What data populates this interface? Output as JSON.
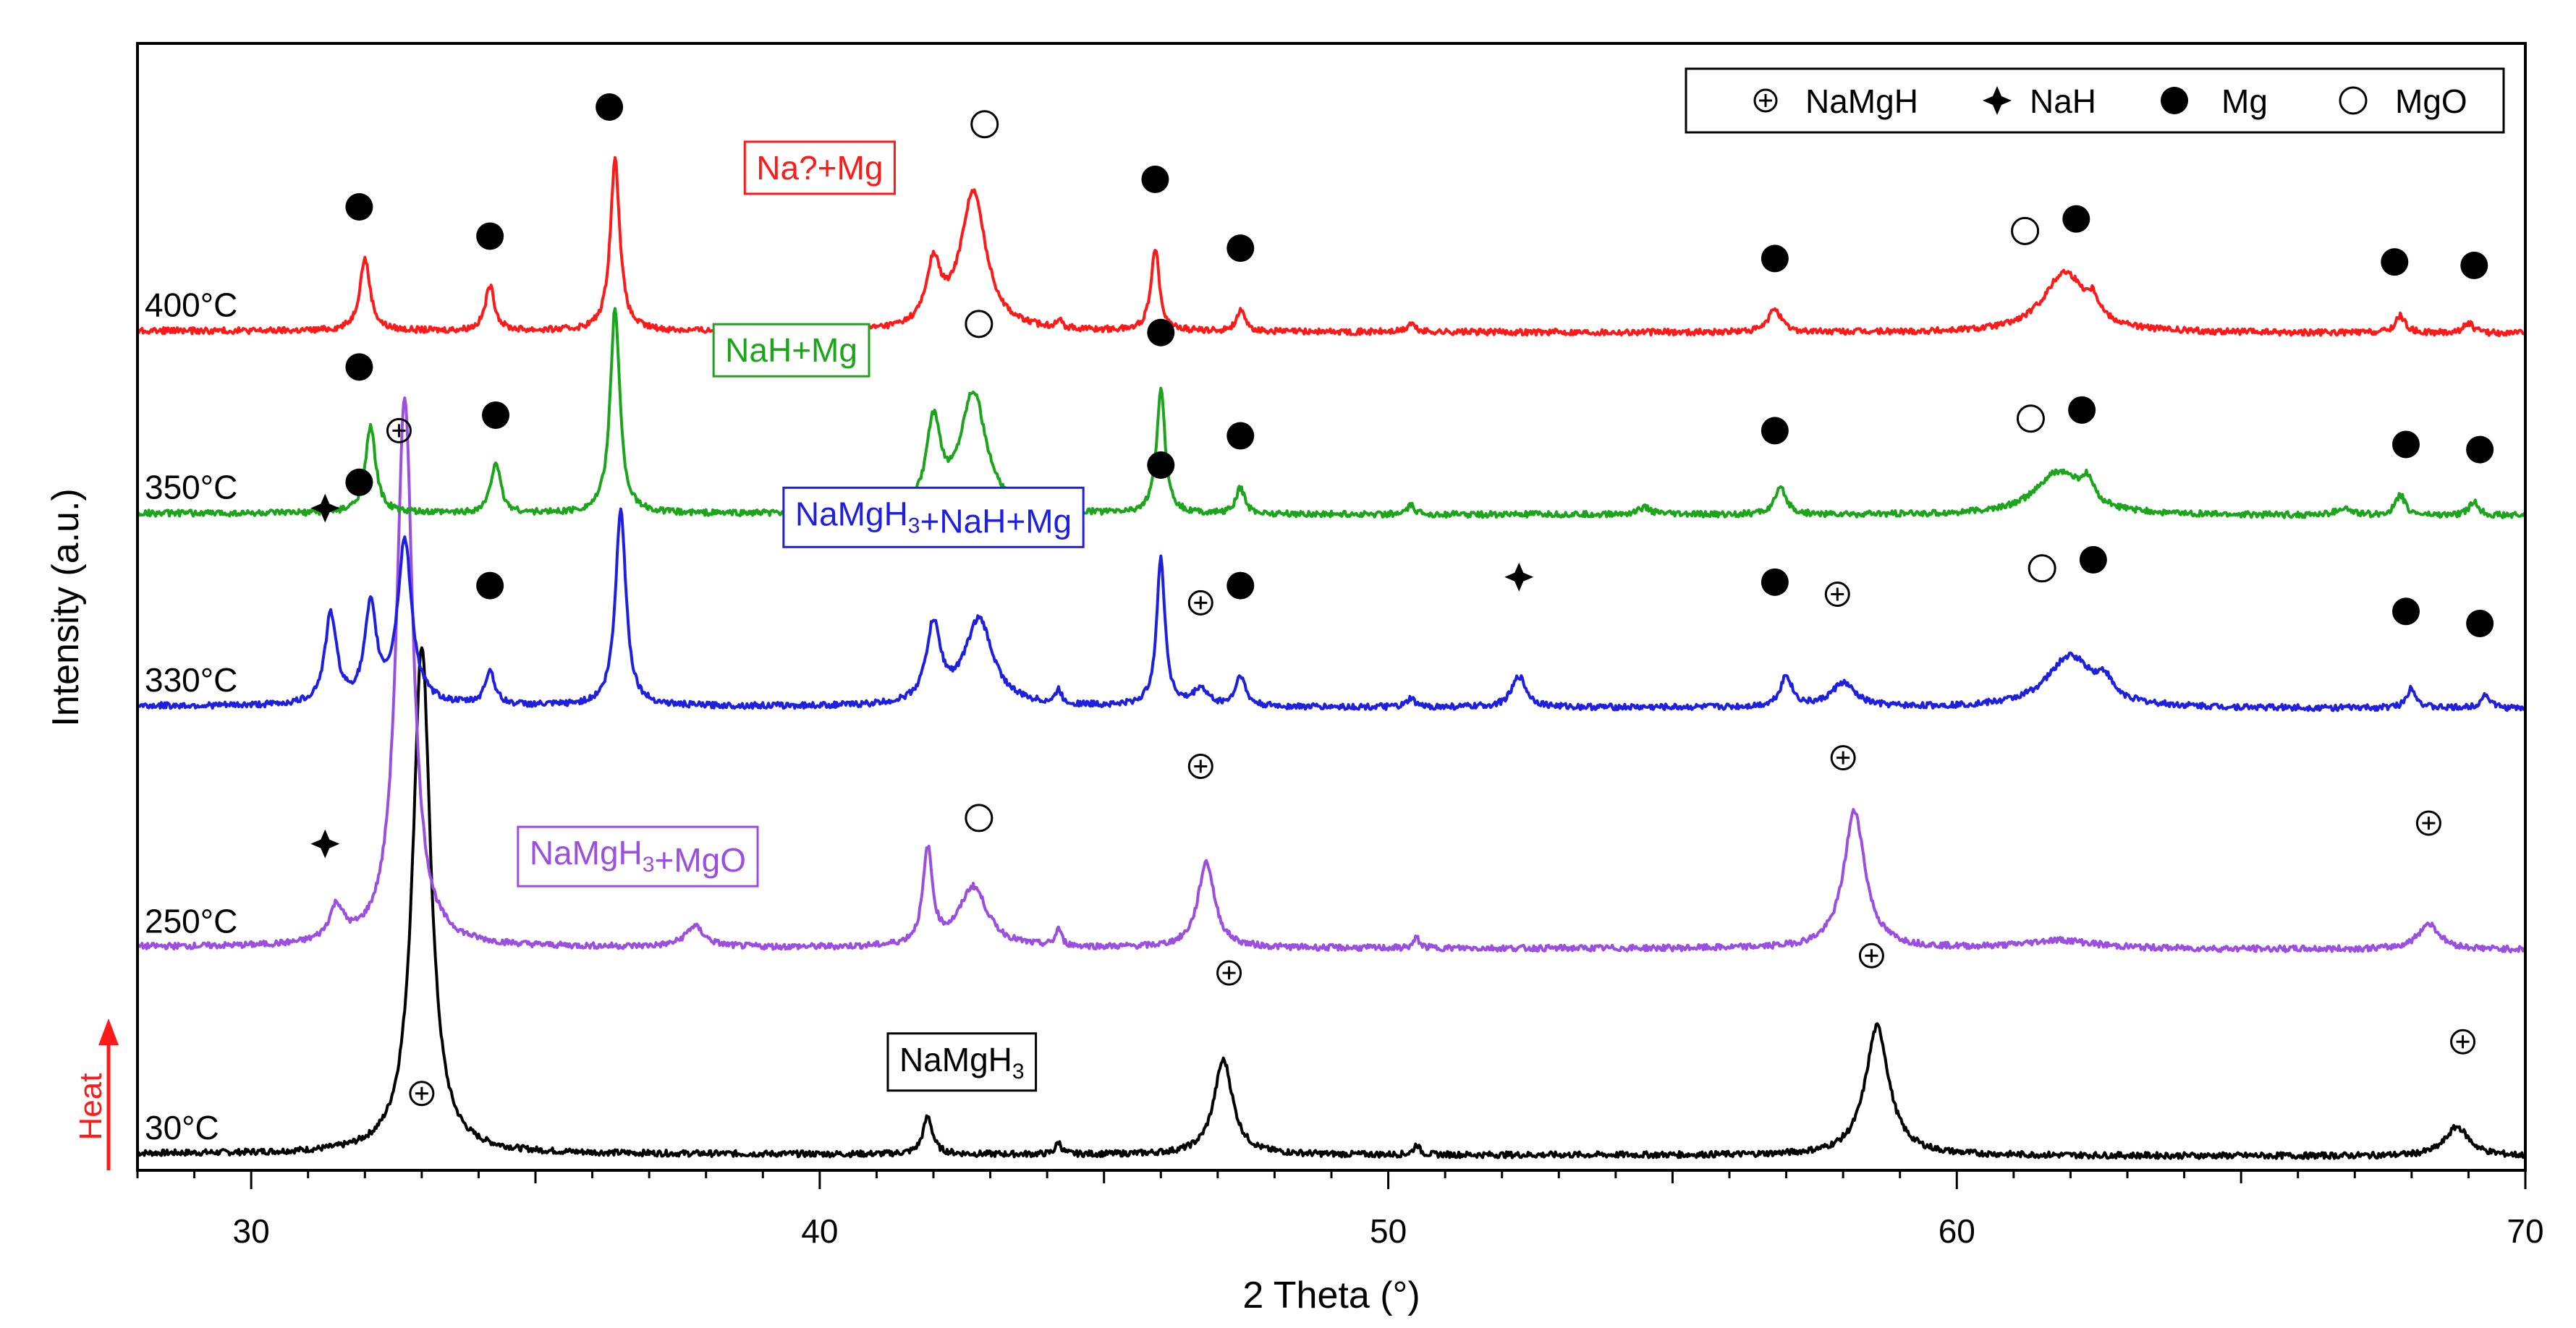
{
  "chart_data": {
    "type": "line",
    "title": "",
    "xlabel": "2 Theta (°)",
    "ylabel": "Intensity (a.u.)",
    "xlim": [
      28,
      70
    ],
    "x_ticks": [
      30,
      40,
      50,
      60,
      70
    ],
    "heat_label": "Heat",
    "legend": {
      "placement": "top-right",
      "entries": [
        {
          "marker": "oplus",
          "label": "NaMgH"
        },
        {
          "marker": "star",
          "label": "NaH"
        },
        {
          "marker": "filled",
          "label": "Mg"
        },
        {
          "marker": "open",
          "label": "MgO"
        }
      ]
    },
    "series": [
      {
        "name": "30°C",
        "color": "#000000",
        "baseline": 0,
        "phase_label": "NaMgH3",
        "phase_label_x": 42.5,
        "peaks": [
          [
            33.0,
            2.95,
            0.38
          ],
          [
            41.9,
            0.22,
            0.2
          ],
          [
            44.2,
            0.07,
            0.12
          ],
          [
            47.1,
            0.55,
            0.4
          ],
          [
            50.5,
            0.06,
            0.12
          ],
          [
            58.6,
            0.75,
            0.5
          ],
          [
            68.8,
            0.17,
            0.5
          ]
        ],
        "markers": [
          {
            "type": "oplus",
            "x": 33.0,
            "y": 0.35
          },
          {
            "type": "oplus",
            "x": 47.2,
            "y": 1.05
          },
          {
            "type": "oplus",
            "x": 58.5,
            "y": 1.15
          },
          {
            "type": "oplus",
            "x": 68.9,
            "y": 0.65
          }
        ]
      },
      {
        "name": "250°C",
        "color": "#9b4fe0",
        "baseline": 1.2,
        "phase_label": "NaMgH3+MgO",
        "phase_label_x": 36.8,
        "peaks": [
          [
            31.5,
            0.2,
            0.3
          ],
          [
            32.7,
            3.2,
            0.35
          ],
          [
            37.8,
            0.12,
            0.4
          ],
          [
            41.9,
            0.55,
            0.2
          ],
          [
            42.7,
            0.35,
            0.6
          ],
          [
            44.2,
            0.1,
            0.12
          ],
          [
            46.8,
            0.5,
            0.35
          ],
          [
            50.5,
            0.06,
            0.12
          ],
          [
            58.2,
            0.8,
            0.45
          ],
          [
            61.8,
            0.05,
            1.5
          ],
          [
            68.3,
            0.15,
            0.45
          ]
        ],
        "markers": [
          {
            "type": "star",
            "x": 31.3,
            "y": 0.6
          },
          {
            "type": "open",
            "x": 42.8,
            "y": 0.75
          },
          {
            "type": "oplus",
            "x": 46.7,
            "y": 1.05
          },
          {
            "type": "oplus",
            "x": 58.0,
            "y": 1.1
          },
          {
            "type": "oplus",
            "x": 68.3,
            "y": 0.72
          }
        ]
      },
      {
        "name": "330°C",
        "color": "#1f1fe0",
        "baseline": 2.6,
        "phase_label": "NaMgH3+NaH+Mg",
        "phase_label_x": 42.0,
        "peaks": [
          [
            31.4,
            0.52,
            0.25
          ],
          [
            32.1,
            0.55,
            0.25
          ],
          [
            32.7,
            0.95,
            0.3
          ],
          [
            34.2,
            0.2,
            0.2
          ],
          [
            36.5,
            1.15,
            0.22
          ],
          [
            42.0,
            0.45,
            0.3
          ],
          [
            42.8,
            0.5,
            0.6
          ],
          [
            44.2,
            0.08,
            0.12
          ],
          [
            46.0,
            0.85,
            0.18
          ],
          [
            46.7,
            0.1,
            0.3
          ],
          [
            47.4,
            0.18,
            0.2
          ],
          [
            50.4,
            0.05,
            0.15
          ],
          [
            52.3,
            0.18,
            0.3
          ],
          [
            57.0,
            0.18,
            0.25
          ],
          [
            58.0,
            0.14,
            0.5
          ],
          [
            62.0,
            0.3,
            1.0
          ],
          [
            62.6,
            0.1,
            0.3
          ],
          [
            68.0,
            0.12,
            0.2
          ],
          [
            69.3,
            0.08,
            0.2
          ]
        ],
        "markers": [
          {
            "type": "star",
            "x": 31.3,
            "y": 1.15
          },
          {
            "type": "filled",
            "x": 31.9,
            "y": 1.3
          },
          {
            "type": "oplus",
            "x": 32.6,
            "y": 1.6
          },
          {
            "type": "filled",
            "x": 34.2,
            "y": 0.7
          },
          {
            "type": "filled",
            "x": 46.0,
            "y": 1.4
          },
          {
            "type": "oplus",
            "x": 46.7,
            "y": 0.6
          },
          {
            "type": "filled",
            "x": 47.4,
            "y": 0.7
          },
          {
            "type": "star",
            "x": 52.3,
            "y": 0.75
          },
          {
            "type": "filled",
            "x": 56.8,
            "y": 0.72
          },
          {
            "type": "oplus",
            "x": 57.9,
            "y": 0.65
          },
          {
            "type": "open",
            "x": 61.5,
            "y": 0.8
          },
          {
            "type": "filled",
            "x": 62.4,
            "y": 0.85
          },
          {
            "type": "filled",
            "x": 67.9,
            "y": 0.55
          },
          {
            "type": "filled",
            "x": 69.2,
            "y": 0.48
          }
        ]
      },
      {
        "name": "350°C",
        "color": "#1aa51a",
        "baseline": 3.72,
        "phase_label": "NaH+Mg",
        "phase_label_x": 39.5,
        "peaks": [
          [
            32.1,
            0.5,
            0.22
          ],
          [
            34.3,
            0.3,
            0.2
          ],
          [
            36.4,
            1.2,
            0.2
          ],
          [
            42.0,
            0.5,
            0.3
          ],
          [
            42.7,
            0.7,
            0.55
          ],
          [
            44.2,
            0.05,
            0.12
          ],
          [
            46.0,
            0.72,
            0.18
          ],
          [
            47.4,
            0.15,
            0.18
          ],
          [
            50.4,
            0.05,
            0.15
          ],
          [
            54.5,
            0.04,
            0.3
          ],
          [
            56.9,
            0.15,
            0.25
          ],
          [
            61.8,
            0.25,
            1.0
          ],
          [
            62.3,
            0.12,
            0.25
          ],
          [
            66.8,
            0.04,
            0.3
          ],
          [
            67.8,
            0.12,
            0.2
          ],
          [
            69.1,
            0.08,
            0.2
          ]
        ],
        "markers": [
          {
            "type": "filled",
            "x": 31.9,
            "y": 0.85
          },
          {
            "type": "filled",
            "x": 34.3,
            "y": 0.57
          },
          {
            "type": "open",
            "x": 42.8,
            "y": 1.1
          },
          {
            "type": "filled",
            "x": 46.0,
            "y": 1.05
          },
          {
            "type": "filled",
            "x": 47.4,
            "y": 0.45
          },
          {
            "type": "filled",
            "x": 56.8,
            "y": 0.48
          },
          {
            "type": "open",
            "x": 61.3,
            "y": 0.55
          },
          {
            "type": "filled",
            "x": 62.2,
            "y": 0.6
          },
          {
            "type": "filled",
            "x": 67.9,
            "y": 0.4
          },
          {
            "type": "filled",
            "x": 69.2,
            "y": 0.37
          }
        ]
      },
      {
        "name": "400°C",
        "color": "#ff1a1a",
        "baseline": 4.78,
        "phase_label": "Na?+Mg",
        "phase_label_x": 40.0,
        "peaks": [
          [
            32.0,
            0.42,
            0.22
          ],
          [
            34.2,
            0.26,
            0.2
          ],
          [
            36.4,
            1.0,
            0.2
          ],
          [
            42.0,
            0.35,
            0.3
          ],
          [
            42.7,
            0.8,
            0.55
          ],
          [
            44.2,
            0.05,
            0.12
          ],
          [
            45.9,
            0.48,
            0.18
          ],
          [
            47.4,
            0.12,
            0.18
          ],
          [
            50.4,
            0.05,
            0.15
          ],
          [
            56.8,
            0.14,
            0.25
          ],
          [
            61.9,
            0.35,
            0.9
          ],
          [
            62.4,
            0.1,
            0.25
          ],
          [
            67.8,
            0.1,
            0.2
          ],
          [
            69.0,
            0.06,
            0.2
          ]
        ],
        "markers": [
          {
            "type": "filled",
            "x": 31.9,
            "y": 0.72
          },
          {
            "type": "filled",
            "x": 34.2,
            "y": 0.55
          },
          {
            "type": "filled",
            "x": 36.3,
            "y": 1.3
          },
          {
            "type": "open",
            "x": 42.9,
            "y": 1.2
          },
          {
            "type": "filled",
            "x": 45.9,
            "y": 0.88
          },
          {
            "type": "filled",
            "x": 47.4,
            "y": 0.48
          },
          {
            "type": "filled",
            "x": 56.8,
            "y": 0.42
          },
          {
            "type": "open",
            "x": 61.2,
            "y": 0.58
          },
          {
            "type": "filled",
            "x": 62.1,
            "y": 0.65
          },
          {
            "type": "filled",
            "x": 67.7,
            "y": 0.4
          },
          {
            "type": "filled",
            "x": 69.1,
            "y": 0.38
          }
        ]
      }
    ]
  }
}
